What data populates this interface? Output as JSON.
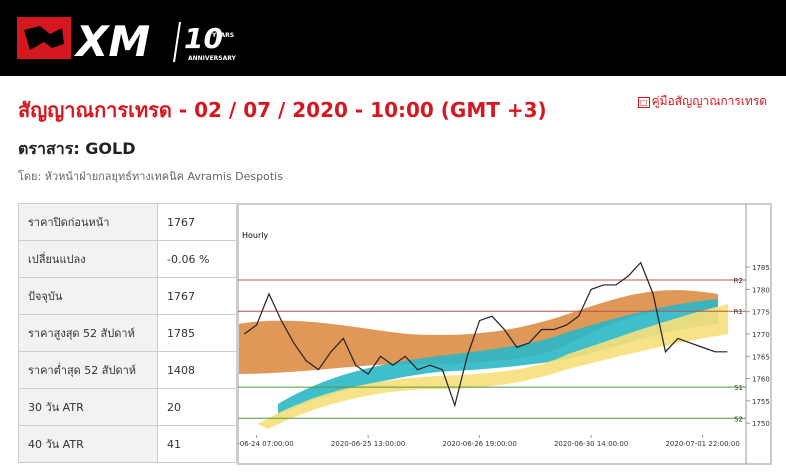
{
  "header": {
    "logo": "XM",
    "badge_number": "10",
    "badge_years": "YEARS",
    "badge_text": "ANNIVERSARY"
  },
  "title": "สัญญาณการเทรด - 02 / 07 / 2020 - 10:00 (GMT +3)",
  "guide_link": "คู่มือสัญญาณการเทรด",
  "instrument": "ตราสาร: GOLD",
  "author": "โดย: หัวหน้าฝ่ายกลยุทธ์ทางเทคนิค Avramis Despotis",
  "table": {
    "rows": [
      [
        "ราคาปิดก่อนหน้า",
        "1767"
      ],
      [
        "เปลี่ยนแปลง",
        "-0.06 %"
      ],
      [
        "ปัจจุบัน",
        "1767"
      ],
      [
        "ราคาสูงสุด 52 สัปดาห์",
        "1785"
      ],
      [
        "ราคาต่ำสุด 52 สัปดาห์",
        "1408"
      ],
      [
        "30 วัน ATR",
        "20"
      ],
      [
        "40 วัน ATR",
        "41"
      ]
    ]
  },
  "chart_data": {
    "type": "line",
    "title": "Hourly",
    "categories": [
      null,
      "2020-06-24 07:00:00",
      null,
      null,
      null,
      null,
      null,
      null,
      null,
      null,
      "2020-06-25 13:00:00",
      null,
      null,
      null,
      null,
      null,
      null,
      null,
      null,
      "2020-06-26 19:00:00",
      null,
      null,
      null,
      null,
      null,
      null,
      null,
      null,
      "2020-06-30 14:00:00",
      null,
      null,
      null,
      null,
      null,
      null,
      null,
      null,
      "2020-07-01 22:00:00",
      null,
      null,
      null
    ],
    "values": [
      1770,
      1772,
      1779,
      1773,
      1768,
      1764,
      1762,
      1766,
      1769,
      1763,
      1761,
      1765,
      1763,
      1765,
      1762,
      1763,
      1762,
      1754,
      1765,
      1773,
      1774,
      1771,
      1767,
      1768,
      1771,
      1771,
      1772,
      1774,
      1780,
      1781,
      1781,
      1783,
      1786,
      1779,
      1766,
      1769,
      1768,
      1767,
      1766,
      1766,
      null
    ],
    "color": "#222222",
    "ylim": [
      1747.8,
      1798.7
    ],
    "yticks": [
      1750,
      1755,
      1760,
      1765,
      1770,
      1775,
      1780,
      1785
    ],
    "levels": [
      {
        "label": "R2",
        "value": 1782.1,
        "color": "#c0504d"
      },
      {
        "label": "R1",
        "value": 1775.1,
        "color": "#c0504d"
      },
      {
        "label": "S1",
        "value": 1758.1,
        "color": "#4e9a3a"
      },
      {
        "label": "S2",
        "value": 1751.1,
        "color": "#4e9a3a"
      }
    ]
  }
}
